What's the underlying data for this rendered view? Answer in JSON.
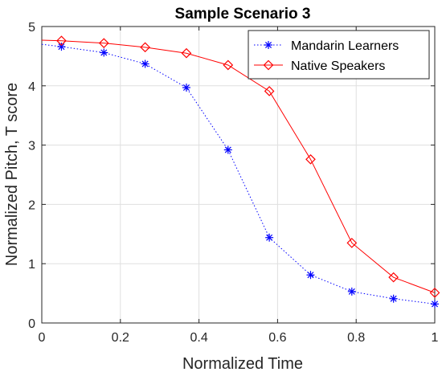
{
  "chart_data": {
    "type": "line",
    "title": "Sample Scenario 3",
    "xlabel": "Normalized Time",
    "ylabel": "Normalized Pitch, T score",
    "xlim": [
      0,
      1
    ],
    "ylim": [
      0,
      5
    ],
    "xticks": [
      0,
      0.2,
      0.4,
      0.6,
      0.8,
      1
    ],
    "xtick_labels": [
      "0",
      "0.2",
      "0.4",
      "0.6",
      "0.8",
      "1"
    ],
    "yticks": [
      0,
      1,
      2,
      3,
      4,
      5
    ],
    "ytick_labels": [
      "0",
      "1",
      "2",
      "3",
      "4",
      "5"
    ],
    "grid": true,
    "legend_position": "top-right",
    "series": [
      {
        "name": "Mandarin Learners",
        "color": "#0000ff",
        "line_style": "dotted",
        "marker": "asterisk",
        "x": [
          0.05,
          0.158,
          0.263,
          0.368,
          0.474,
          0.579,
          0.684,
          0.789,
          0.895,
          1.0
        ],
        "y": [
          4.66,
          4.56,
          4.37,
          3.97,
          2.92,
          1.44,
          0.81,
          0.53,
          0.41,
          0.32
        ],
        "line_x": [
          0,
          0.05,
          0.158,
          0.263,
          0.368,
          0.474,
          0.579,
          0.684,
          0.789,
          0.895,
          1.0
        ],
        "line_y": [
          4.7,
          4.66,
          4.56,
          4.37,
          3.97,
          2.92,
          1.44,
          0.81,
          0.53,
          0.41,
          0.32
        ]
      },
      {
        "name": "Native Speakers",
        "color": "#ff0000",
        "line_style": "solid",
        "marker": "diamond",
        "x": [
          0.05,
          0.158,
          0.263,
          0.368,
          0.474,
          0.579,
          0.684,
          0.789,
          0.895,
          1.0
        ],
        "y": [
          4.76,
          4.72,
          4.65,
          4.55,
          4.35,
          3.91,
          2.76,
          1.35,
          0.77,
          0.51
        ],
        "line_x": [
          0,
          0.05,
          0.158,
          0.263,
          0.368,
          0.474,
          0.579,
          0.684,
          0.789,
          0.895,
          1.0
        ],
        "line_y": [
          4.77,
          4.76,
          4.72,
          4.65,
          4.55,
          4.35,
          3.91,
          2.76,
          1.35,
          0.77,
          0.51
        ]
      }
    ]
  }
}
